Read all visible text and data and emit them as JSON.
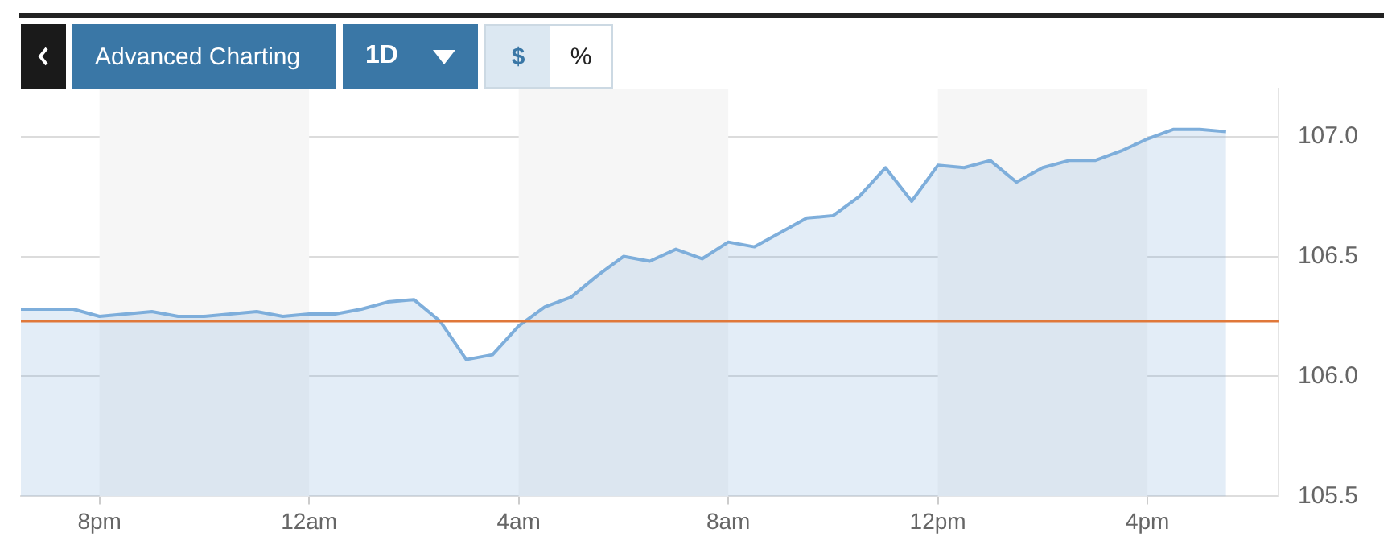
{
  "chart_data": {
    "type": "area",
    "annotations": [
      "Advanced Charting",
      "1D",
      "$",
      "%"
    ],
    "categories": [
      null,
      null,
      null,
      "8pm",
      null,
      null,
      null,
      null,
      null,
      null,
      null,
      "12am",
      null,
      null,
      null,
      null,
      null,
      null,
      null,
      "4am",
      null,
      null,
      null,
      null,
      null,
      null,
      null,
      "8am",
      null,
      null,
      null,
      null,
      null,
      null,
      null,
      "12pm",
      null,
      null,
      null,
      null,
      null,
      null,
      null,
      "4pm",
      null,
      null,
      null,
      null,
      null
    ],
    "series": [
      {
        "color": "#7eaedb",
        "values": [
          106.28,
          106.28,
          106.28,
          106.25,
          106.26,
          106.27,
          106.25,
          106.25,
          106.26,
          106.27,
          106.25,
          106.26,
          106.26,
          106.28,
          106.31,
          106.32,
          106.23,
          106.07,
          106.09,
          106.21,
          106.29,
          106.33,
          106.42,
          106.5,
          106.48,
          106.53,
          106.49,
          106.56,
          106.54,
          106.6,
          106.66,
          106.67,
          106.75,
          106.87,
          106.73,
          106.88,
          106.87,
          106.9,
          106.81,
          106.87,
          106.9,
          106.9,
          106.94,
          106.99,
          107.03,
          107.03,
          107.02,
          null,
          null
        ]
      }
    ],
    "ylim": [
      105.5,
      107.2
    ],
    "yticks": [
      {
        "value": 105.5,
        "label": "105.5"
      },
      {
        "value": 106,
        "label": "106.0"
      },
      {
        "value": 106.5,
        "label": "106.5"
      },
      {
        "value": 107,
        "label": "107.0"
      }
    ],
    "grid": "y",
    "ref_lines": [
      {
        "axis": "y",
        "value": 106.23,
        "color": "#e0783a"
      }
    ],
    "bands": [
      {
        "axis": "x",
        "from": "8pm",
        "to": "12am",
        "color": "#f6f6f6"
      },
      {
        "axis": "x",
        "from": "4am",
        "to": "8am",
        "color": "#f6f6f6"
      },
      {
        "axis": "x",
        "from": "12pm",
        "to": "4pm",
        "color": "#f6f6f6"
      }
    ]
  }
}
